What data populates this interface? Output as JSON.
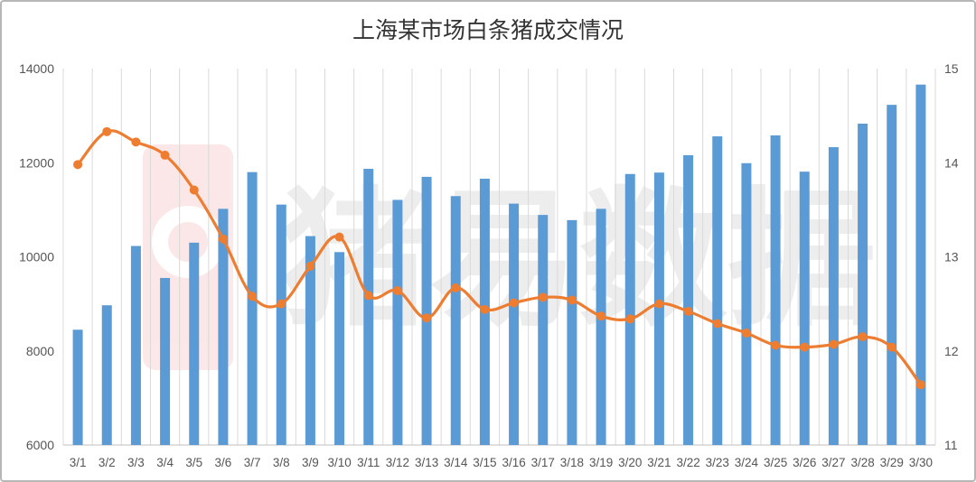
{
  "chart_data": {
    "type": "bar+line",
    "title": "上海某市场白条猪成交情况",
    "categories": [
      "3/1",
      "3/2",
      "3/3",
      "3/4",
      "3/5",
      "3/6",
      "3/7",
      "3/8",
      "3/9",
      "3/10",
      "3/11",
      "3/12",
      "3/13",
      "3/14",
      "3/15",
      "3/16",
      "3/17",
      "3/18",
      "3/19",
      "3/20",
      "3/21",
      "3/22",
      "3/23",
      "3/24",
      "3/25",
      "3/26",
      "3/27",
      "3/28",
      "3/29",
      "3/30"
    ],
    "series": [
      {
        "type": "bar",
        "axis": "left",
        "color": "#5b9bd5",
        "values": [
          8450,
          8970,
          10230,
          9550,
          10300,
          11020,
          11800,
          11110,
          10440,
          10100,
          11870,
          11210,
          11700,
          11290,
          11660,
          11130,
          10890,
          10780,
          11020,
          11760,
          11790,
          12160,
          12560,
          11990,
          12580,
          11810,
          12330,
          12830,
          13230,
          13660
        ]
      },
      {
        "type": "line",
        "axis": "right",
        "color": "#ed7d31",
        "values": [
          13.98,
          14.33,
          14.22,
          14.08,
          13.71,
          13.19,
          12.58,
          12.5,
          12.9,
          13.21,
          12.59,
          12.64,
          12.35,
          12.67,
          12.44,
          12.51,
          12.57,
          12.54,
          12.37,
          12.34,
          12.5,
          12.42,
          12.29,
          12.19,
          12.06,
          12.04,
          12.07,
          12.15,
          12.04,
          11.64
        ]
      }
    ],
    "y_left": {
      "min": 6000,
      "max": 14000,
      "ticks": [
        6000,
        8000,
        10000,
        12000,
        14000
      ]
    },
    "y_right": {
      "min": 11,
      "max": 15,
      "ticks": [
        11,
        12,
        13,
        14,
        15
      ]
    },
    "grid": "vertical",
    "legend": "none",
    "watermark": "猪易数据"
  }
}
